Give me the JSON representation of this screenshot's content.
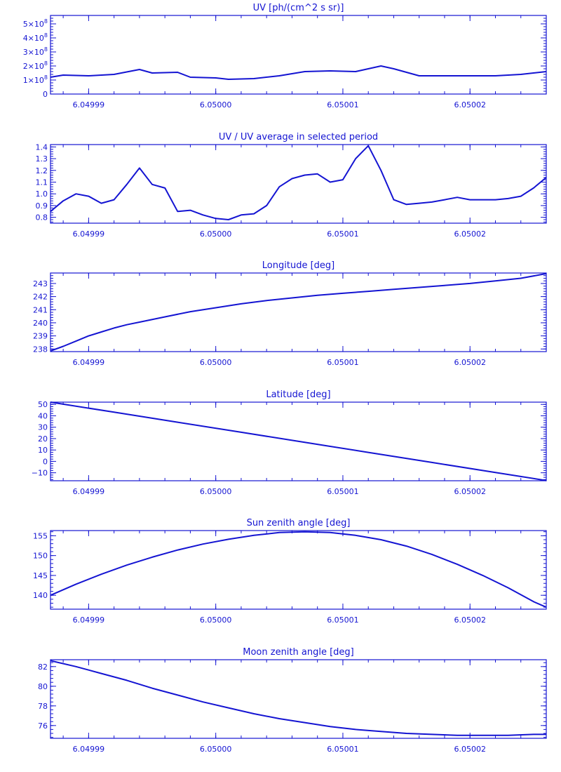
{
  "chart_data": [
    {
      "type": "line",
      "title": "UV [ph/(cm^2 s sr)]",
      "xlim": [
        6.049987,
        6.050026
      ],
      "xticks": [
        6.04999,
        6.05,
        6.05001,
        6.05002
      ],
      "xtick_labels": [
        "6.04999",
        "6.05000",
        "6.05001",
        "6.05002"
      ],
      "ylim": [
        0,
        560000000.0
      ],
      "yticks": [
        0,
        100000000.0,
        200000000.0,
        300000000.0,
        400000000.0,
        500000000.0
      ],
      "ytick_labels": [
        {
          "base": "0",
          "exp": ""
        },
        {
          "base": "1×10",
          "exp": "8"
        },
        {
          "base": "2×10",
          "exp": "8"
        },
        {
          "base": "3×10",
          "exp": "8"
        },
        {
          "base": "4×10",
          "exp": "8"
        },
        {
          "base": "5×10",
          "exp": "8"
        }
      ],
      "x": [
        6.049987,
        6.049988,
        6.04999,
        6.049992,
        6.049994,
        6.049995,
        6.049997,
        6.049998,
        6.05,
        6.050001,
        6.050003,
        6.050005,
        6.050007,
        6.050009,
        6.050011,
        6.050012,
        6.050013,
        6.050014,
        6.050016,
        6.050018,
        6.05002,
        6.050022,
        6.050024,
        6.050026
      ],
      "y": [
        120000000.0,
        135000000.0,
        130000000.0,
        140000000.0,
        175000000.0,
        150000000.0,
        155000000.0,
        120000000.0,
        115000000.0,
        105000000.0,
        110000000.0,
        130000000.0,
        160000000.0,
        165000000.0,
        160000000.0,
        180000000.0,
        200000000.0,
        180000000.0,
        130000000.0,
        130000000.0,
        130000000.0,
        130000000.0,
        140000000.0,
        160000000.0
      ]
    },
    {
      "type": "line",
      "title": "UV / UV average in selected period",
      "xlim": [
        6.049987,
        6.050026
      ],
      "xticks": [
        6.04999,
        6.05,
        6.05001,
        6.05002
      ],
      "xtick_labels": [
        "6.04999",
        "6.05000",
        "6.05001",
        "6.05002"
      ],
      "ylim": [
        0.75,
        1.42
      ],
      "yticks": [
        0.8,
        0.9,
        1.0,
        1.1,
        1.2,
        1.3,
        1.4
      ],
      "ytick_labels": [
        {
          "base": "0.8",
          "exp": ""
        },
        {
          "base": "0.9",
          "exp": ""
        },
        {
          "base": "1.0",
          "exp": ""
        },
        {
          "base": "1.1",
          "exp": ""
        },
        {
          "base": "1.2",
          "exp": ""
        },
        {
          "base": "1.3",
          "exp": ""
        },
        {
          "base": "1.4",
          "exp": ""
        }
      ],
      "x": [
        6.049987,
        6.049988,
        6.049989,
        6.04999,
        6.049991,
        6.049992,
        6.049993,
        6.049994,
        6.049995,
        6.049996,
        6.049997,
        6.049998,
        6.049999,
        6.05,
        6.050001,
        6.050002,
        6.050003,
        6.050004,
        6.050005,
        6.050006,
        6.050007,
        6.050008,
        6.050009,
        6.05001,
        6.050011,
        6.050012,
        6.050013,
        6.050014,
        6.050015,
        6.050016,
        6.050017,
        6.050018,
        6.050019,
        6.05002,
        6.050021,
        6.050022,
        6.050023,
        6.050024,
        6.050025,
        6.050026
      ],
      "y": [
        0.85,
        0.94,
        1.0,
        0.98,
        0.92,
        0.95,
        1.08,
        1.22,
        1.08,
        1.05,
        0.85,
        0.86,
        0.82,
        0.79,
        0.78,
        0.82,
        0.83,
        0.9,
        1.06,
        1.13,
        1.16,
        1.17,
        1.1,
        1.12,
        1.3,
        1.41,
        1.2,
        0.95,
        0.91,
        0.92,
        0.93,
        0.95,
        0.97,
        0.95,
        0.95,
        0.95,
        0.96,
        0.98,
        1.05,
        1.14
      ]
    },
    {
      "type": "line",
      "title": "Longitude [deg]",
      "xlim": [
        6.049987,
        6.050026
      ],
      "xticks": [
        6.04999,
        6.05,
        6.05001,
        6.05002
      ],
      "xtick_labels": [
        "6.04999",
        "6.05000",
        "6.05001",
        "6.05002"
      ],
      "ylim": [
        237.8,
        243.8
      ],
      "yticks": [
        238,
        239,
        240,
        241,
        242,
        243
      ],
      "ytick_labels": [
        {
          "base": "238",
          "exp": ""
        },
        {
          "base": "239",
          "exp": ""
        },
        {
          "base": "240",
          "exp": ""
        },
        {
          "base": "241",
          "exp": ""
        },
        {
          "base": "242",
          "exp": ""
        },
        {
          "base": "243",
          "exp": ""
        }
      ],
      "x": [
        6.049987,
        6.049988,
        6.049989,
        6.04999,
        6.049991,
        6.049992,
        6.049993,
        6.049994,
        6.049996,
        6.049998,
        6.05,
        6.050002,
        6.050004,
        6.050006,
        6.050008,
        6.05001,
        6.050012,
        6.050014,
        6.050016,
        6.050018,
        6.05002,
        6.050022,
        6.050024,
        6.050026
      ],
      "y": [
        237.85,
        238.2,
        238.6,
        239.0,
        239.3,
        239.6,
        239.85,
        240.05,
        240.45,
        240.85,
        241.15,
        241.45,
        241.7,
        241.9,
        242.1,
        242.25,
        242.4,
        242.55,
        242.7,
        242.85,
        243.0,
        243.2,
        243.4,
        243.75
      ]
    },
    {
      "type": "line",
      "title": "Latitude [deg]",
      "xlim": [
        6.049987,
        6.050026
      ],
      "xticks": [
        6.04999,
        6.05,
        6.05001,
        6.05002
      ],
      "xtick_labels": [
        "6.04999",
        "6.05000",
        "6.05001",
        "6.05002"
      ],
      "ylim": [
        -17,
        52
      ],
      "yticks": [
        -10,
        0,
        10,
        20,
        30,
        40,
        50
      ],
      "ytick_labels": [
        {
          "base": "−10",
          "exp": ""
        },
        {
          "base": "0",
          "exp": ""
        },
        {
          "base": "10",
          "exp": ""
        },
        {
          "base": "20",
          "exp": ""
        },
        {
          "base": "30",
          "exp": ""
        },
        {
          "base": "40",
          "exp": ""
        },
        {
          "base": "50",
          "exp": ""
        }
      ],
      "x": [
        6.049987,
        6.049992,
        6.049997,
        6.050002,
        6.050007,
        6.050012,
        6.050017,
        6.050022,
        6.050026
      ],
      "y": [
        52,
        43.2,
        34.4,
        25.6,
        16.7,
        7.9,
        -0.9,
        -9.7,
        -16.8
      ]
    },
    {
      "type": "line",
      "title": "Sun zenith angle [deg]",
      "xlim": [
        6.049987,
        6.050026
      ],
      "xticks": [
        6.04999,
        6.05,
        6.05001,
        6.05002
      ],
      "xtick_labels": [
        "6.04999",
        "6.05000",
        "6.05001",
        "6.05002"
      ],
      "ylim": [
        136.5,
        156.3
      ],
      "yticks": [
        140,
        145,
        150,
        155
      ],
      "ytick_labels": [
        {
          "base": "140",
          "exp": ""
        },
        {
          "base": "145",
          "exp": ""
        },
        {
          "base": "150",
          "exp": ""
        },
        {
          "base": "155",
          "exp": ""
        }
      ],
      "x": [
        6.049987,
        6.049989,
        6.049991,
        6.049993,
        6.049995,
        6.049997,
        6.049999,
        6.050001,
        6.050003,
        6.050005,
        6.050007,
        6.050009,
        6.050011,
        6.050013,
        6.050015,
        6.050017,
        6.050019,
        6.050021,
        6.050023,
        6.050025,
        6.050026
      ],
      "y": [
        140.0,
        142.8,
        145.3,
        147.6,
        149.6,
        151.4,
        152.9,
        154.1,
        155.1,
        155.8,
        156.0,
        155.8,
        155.1,
        154.0,
        152.4,
        150.3,
        147.8,
        145.0,
        141.9,
        138.4,
        137.0
      ]
    },
    {
      "type": "line",
      "title": "Moon zenith angle [deg]",
      "xlim": [
        6.049987,
        6.050026
      ],
      "xticks": [
        6.04999,
        6.05,
        6.05001,
        6.05002
      ],
      "xtick_labels": [
        "6.04999",
        "6.05000",
        "6.05001",
        "6.05002"
      ],
      "ylim": [
        74.7,
        82.7
      ],
      "yticks": [
        76,
        78,
        80,
        82
      ],
      "ytick_labels": [
        {
          "base": "76",
          "exp": ""
        },
        {
          "base": "78",
          "exp": ""
        },
        {
          "base": "80",
          "exp": ""
        },
        {
          "base": "82",
          "exp": ""
        }
      ],
      "x": [
        6.049987,
        6.049989,
        6.049991,
        6.049993,
        6.049995,
        6.049997,
        6.049999,
        6.050001,
        6.050003,
        6.050005,
        6.050007,
        6.050009,
        6.050011,
        6.050013,
        6.050015,
        6.050017,
        6.050019,
        6.050021,
        6.050023,
        6.050025,
        6.050026
      ],
      "y": [
        82.6,
        82.0,
        81.3,
        80.6,
        79.8,
        79.1,
        78.4,
        77.8,
        77.2,
        76.7,
        76.3,
        75.9,
        75.6,
        75.4,
        75.2,
        75.1,
        75.0,
        75.0,
        75.0,
        75.1,
        75.1
      ]
    }
  ]
}
